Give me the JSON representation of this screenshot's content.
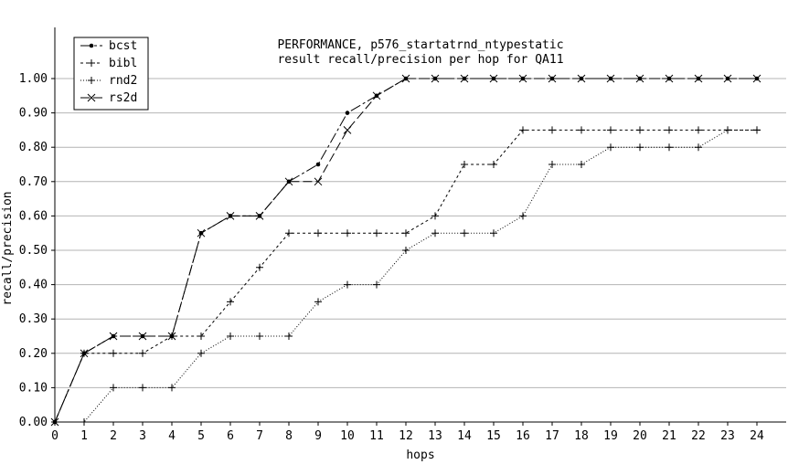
{
  "chart_data": {
    "type": "line",
    "title": [
      "PERFORMANCE, p576_startatrnd_ntypestatic",
      "result recall/precision per hop for QA11"
    ],
    "xlabel": "hops",
    "ylabel": "recall/precision",
    "xlim": [
      0,
      24
    ],
    "ylim": [
      0,
      1.0
    ],
    "x": [
      0,
      1,
      2,
      3,
      4,
      5,
      6,
      7,
      8,
      9,
      10,
      11,
      12,
      13,
      14,
      15,
      16,
      17,
      18,
      19,
      20,
      21,
      22,
      23,
      24
    ],
    "x_tick_labels": [
      "0",
      "1",
      "2",
      "3",
      "4",
      "5",
      "6",
      "7",
      "8",
      "9",
      "10",
      "11",
      "12",
      "13",
      "14",
      "15",
      "16",
      "17",
      "18",
      "19",
      "20",
      "21",
      "22",
      "23",
      "24"
    ],
    "y_ticks": [
      0,
      0.1,
      0.2,
      0.3,
      0.4,
      0.5,
      0.6,
      0.7,
      0.8,
      0.9,
      1.0
    ],
    "y_tick_labels": [
      "0.00",
      "0.10",
      "0.20",
      "0.30",
      "0.40",
      "0.50",
      "0.60",
      "0.70",
      "0.80",
      "0.90",
      "1.00"
    ],
    "grid": "horizontal",
    "legend_position": "top-left",
    "series": [
      {
        "name": "bcst",
        "marker": "dot",
        "dash": "12,3,3,3",
        "values": [
          0,
          0.2,
          0.25,
          0.25,
          0.25,
          0.55,
          0.6,
          0.6,
          0.7,
          0.75,
          0.9,
          0.95,
          1,
          1,
          1,
          1,
          1,
          1,
          1,
          1,
          1,
          1,
          1,
          1,
          1
        ]
      },
      {
        "name": "bibl",
        "marker": "plus",
        "dash": "3,3",
        "values": [
          0,
          0.2,
          0.2,
          0.2,
          0.25,
          0.25,
          0.35,
          0.45,
          0.55,
          0.55,
          0.55,
          0.55,
          0.55,
          0.6,
          0.75,
          0.75,
          0.85,
          0.85,
          0.85,
          0.85,
          0.85,
          0.85,
          0.85,
          0.85,
          0.85
        ]
      },
      {
        "name": "rnd2",
        "marker": "plus",
        "dash": "1,2",
        "values": [
          0,
          0,
          0.1,
          0.1,
          0.1,
          0.2,
          0.25,
          0.25,
          0.25,
          0.35,
          0.4,
          0.4,
          0.5,
          0.55,
          0.55,
          0.55,
          0.6,
          0.75,
          0.75,
          0.8,
          0.8,
          0.8,
          0.8,
          0.85,
          0.85
        ]
      },
      {
        "name": "rs2d",
        "marker": "cross",
        "dash": "10,4",
        "values": [
          0,
          0.2,
          0.25,
          0.25,
          0.25,
          0.55,
          0.6,
          0.6,
          0.7,
          0.7,
          0.85,
          0.95,
          1,
          1,
          1,
          1,
          1,
          1,
          1,
          1,
          1,
          1,
          1,
          1,
          1
        ]
      }
    ]
  }
}
